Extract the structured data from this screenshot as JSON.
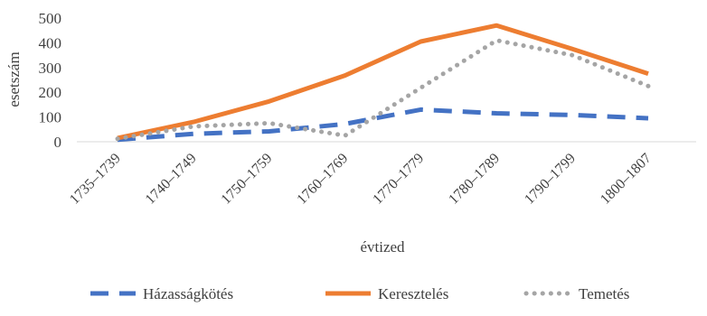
{
  "chart_data": {
    "type": "line",
    "title": "",
    "xlabel": "évtized",
    "ylabel": "esetszám",
    "ylim": [
      0,
      500
    ],
    "yticks": [
      0,
      100,
      200,
      300,
      400,
      500
    ],
    "grid": false,
    "legend_position": "bottom",
    "categories": [
      "1735–1739",
      "1740–1749",
      "1750–1759",
      "1760–1769",
      "1770–1779",
      "1780–1789",
      "1790–1799",
      "1800–1807"
    ],
    "series": [
      {
        "name": "Házasságkötés",
        "style": "dashed",
        "color": "#4472C4",
        "values": [
          8,
          32,
          42,
          72,
          130,
          115,
          108,
          95
        ]
      },
      {
        "name": "Keresztelés",
        "style": "solid",
        "color": "#ED7D31",
        "values": [
          15,
          80,
          163,
          268,
          405,
          470,
          375,
          275
        ]
      },
      {
        "name": "Temetés",
        "style": "dotted",
        "color": "#A5A5A5",
        "values": [
          12,
          62,
          75,
          25,
          218,
          410,
          350,
          225
        ]
      }
    ]
  }
}
